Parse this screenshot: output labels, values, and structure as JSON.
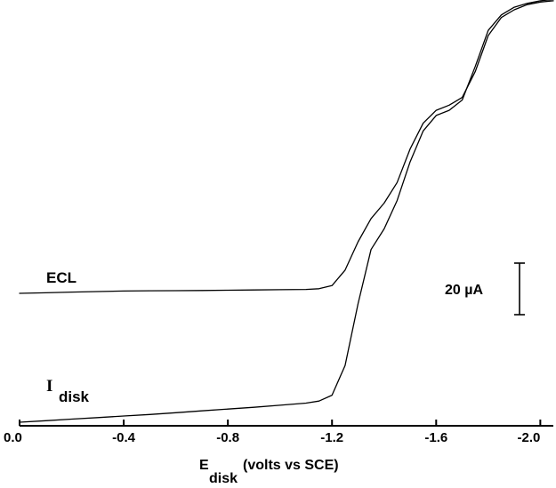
{
  "chart_data": {
    "type": "line",
    "xlim": [
      0.0,
      -2.05
    ],
    "xticks": [
      {
        "value": 0.0,
        "label": "0.0"
      },
      {
        "value": -0.4,
        "label": "-0.4"
      },
      {
        "value": -0.8,
        "label": "-0.8"
      },
      {
        "value": -1.2,
        "label": "-1.2"
      },
      {
        "value": -1.6,
        "label": "-1.6"
      },
      {
        "value": -2.0,
        "label": "-2.0"
      }
    ],
    "xlabel": {
      "main": "E",
      "sub": "disk",
      "rest": "(volts vs SCE)"
    },
    "y_units": "µA",
    "y_scale_bar": {
      "value": 20,
      "label": "20 µA"
    },
    "grid": false,
    "series": [
      {
        "name": "ECL",
        "x": [
          0.0,
          -0.1,
          -0.2,
          -0.3,
          -0.4,
          -0.5,
          -0.6,
          -0.7,
          -0.8,
          -0.9,
          -1.0,
          -1.1,
          -1.15,
          -1.2,
          -1.25,
          -1.3,
          -1.35,
          -1.4,
          -1.45,
          -1.5,
          -1.55,
          -1.6,
          -1.65,
          -1.7,
          -1.75,
          -1.8,
          -1.85,
          -1.9,
          -1.95,
          -2.0,
          -2.05
        ],
        "y": [
          0.0,
          0.2,
          0.5,
          0.7,
          0.9,
          1.0,
          1.05,
          1.1,
          1.2,
          1.3,
          1.4,
          1.5,
          1.8,
          3.0,
          9.0,
          20.0,
          29.0,
          35.0,
          43.0,
          56.0,
          66.0,
          71.0,
          73.0,
          76.0,
          86.0,
          100.0,
          107.0,
          110.0,
          112.0,
          113.0,
          113.5
        ]
      },
      {
        "name": "I",
        "name_sub": "disk",
        "x": [
          0.0,
          -0.1,
          -0.2,
          -0.3,
          -0.4,
          -0.5,
          -0.6,
          -0.7,
          -0.8,
          -0.9,
          -1.0,
          -1.1,
          -1.15,
          -1.2,
          -1.25,
          -1.3,
          -1.35,
          -1.4,
          -1.45,
          -1.5,
          -1.55,
          -1.6,
          -1.65,
          -1.7,
          -1.75,
          -1.8,
          -1.85,
          -1.9,
          -1.95,
          -2.0,
          -2.05
        ],
        "y": [
          0.0,
          0.6,
          1.2,
          1.8,
          2.4,
          3.0,
          3.7,
          4.4,
          5.1,
          5.8,
          6.6,
          7.4,
          8.2,
          10.5,
          22.0,
          46.0,
          67.0,
          75.0,
          86.0,
          101.0,
          113.0,
          119.0,
          121.0,
          125.0,
          138.0,
          152.0,
          158.0,
          161.0,
          162.5,
          163.5,
          164.0
        ]
      }
    ]
  }
}
